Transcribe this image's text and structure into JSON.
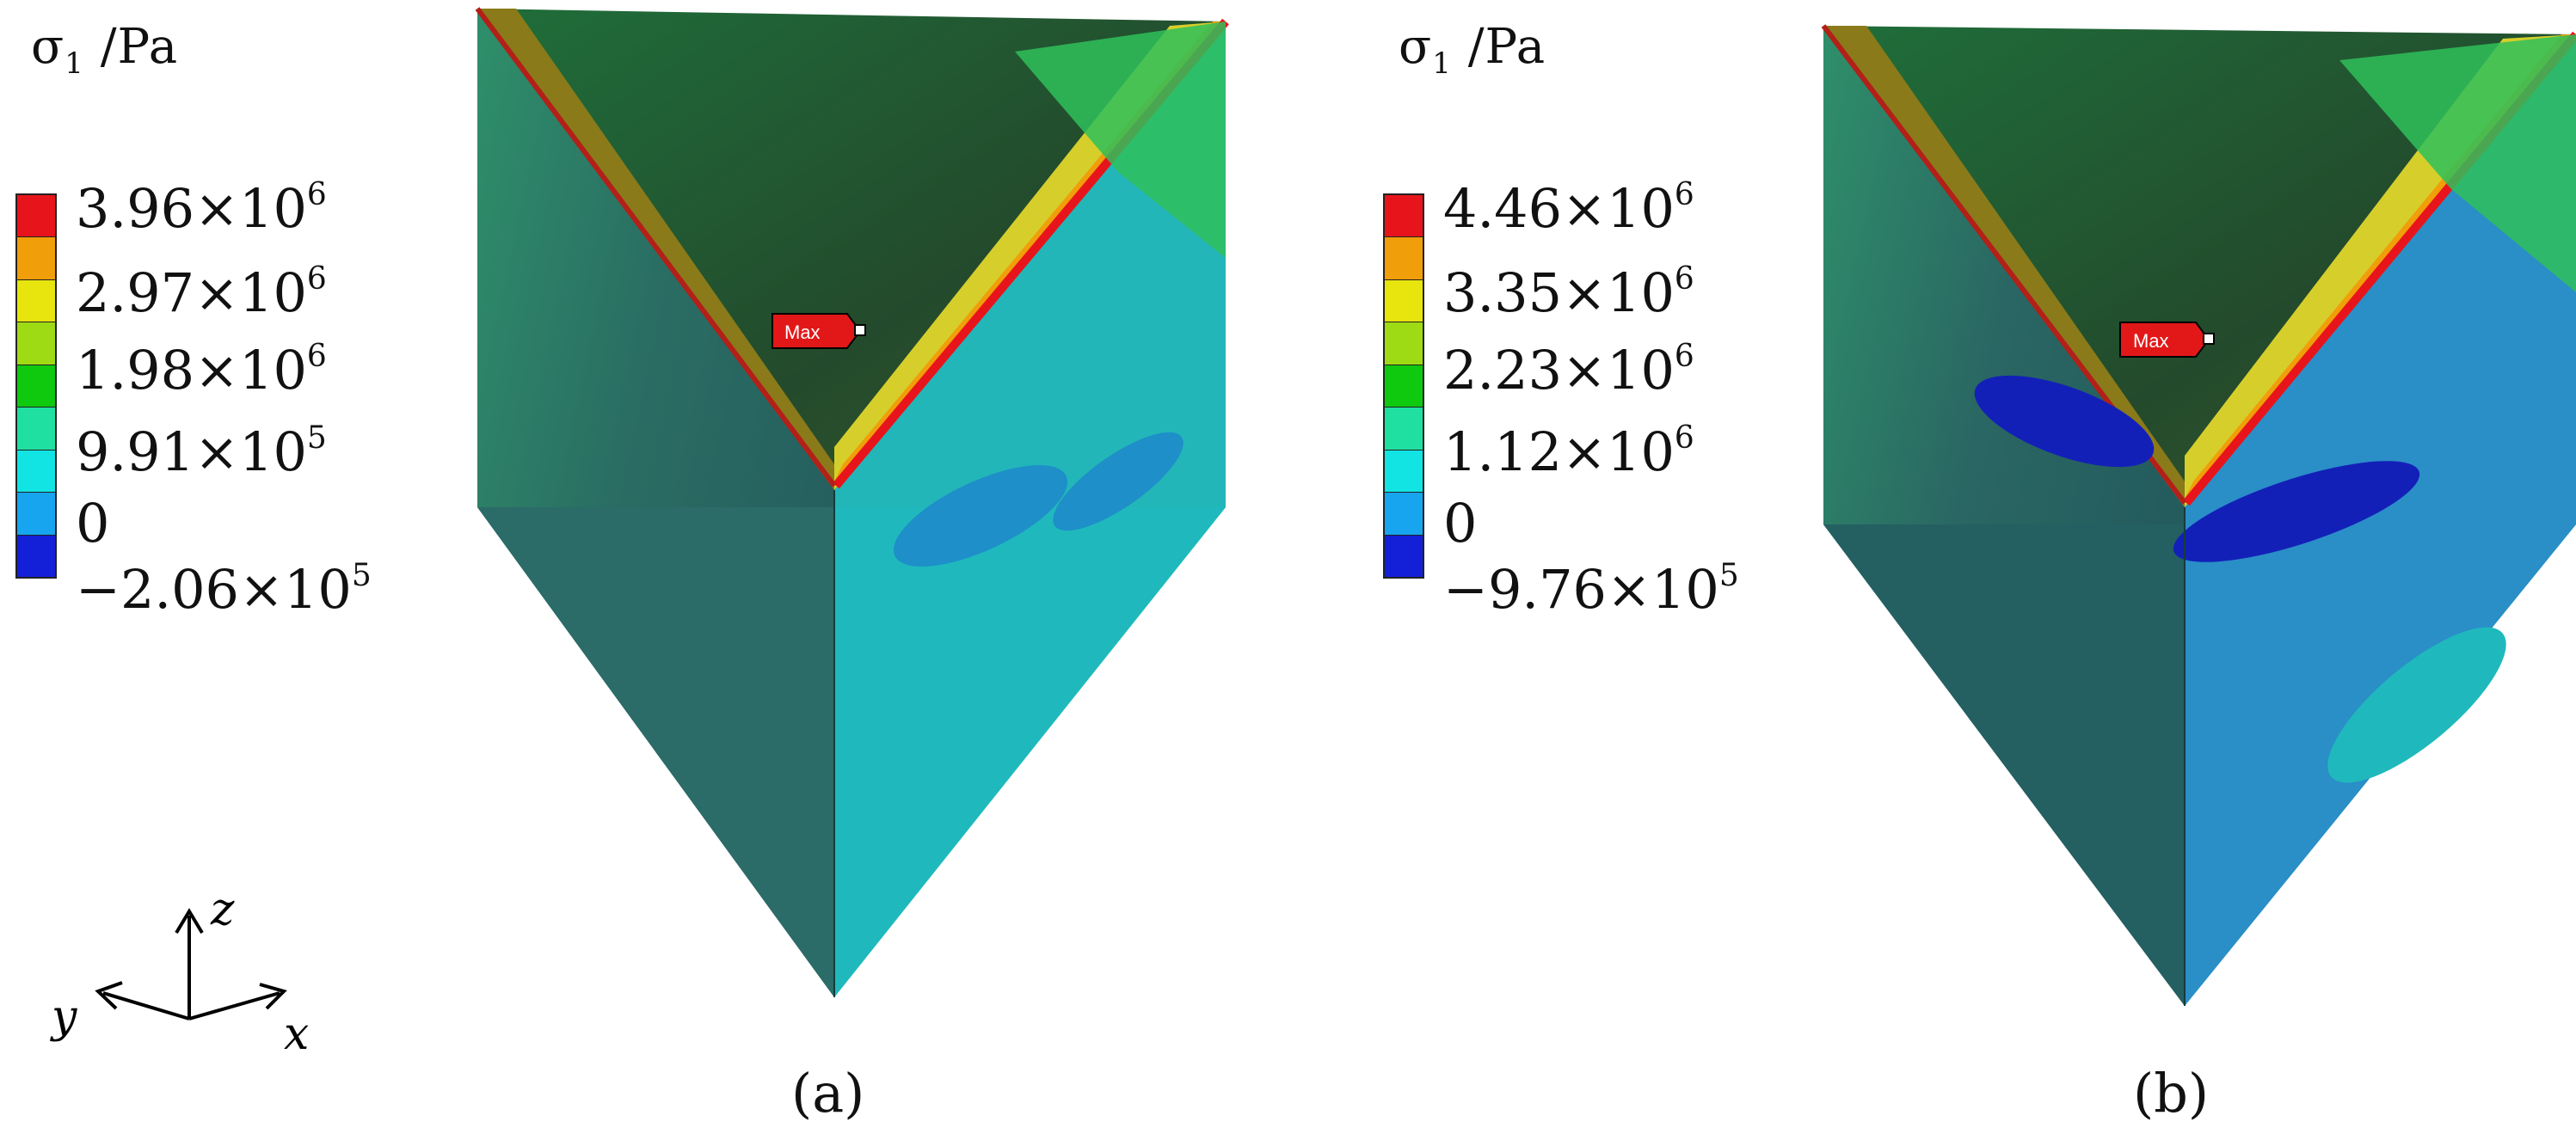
{
  "axes": {
    "z_label": "z",
    "y_label": "y",
    "x_label": "x"
  },
  "panels": [
    {
      "caption": "(a)",
      "legend": {
        "quantity": "σ",
        "quantity_sub": "1",
        "unit": "/Pa",
        "ticks": [
          {
            "mantissa": "3.96×10",
            "exp": "6"
          },
          {
            "mantissa": "2.97×10",
            "exp": "6"
          },
          {
            "mantissa": "1.98×10",
            "exp": "6"
          },
          {
            "mantissa": "9.91×10",
            "exp": "5"
          },
          {
            "mantissa": "0",
            "exp": ""
          },
          {
            "mantissa": "−2.06×10",
            "exp": "5"
          }
        ],
        "colors": [
          "#e8141b",
          "#f09e0a",
          "#e7e40e",
          "#9fdb14",
          "#0fc90f",
          "#1fe0a0",
          "#12e4e4",
          "#16a5ee",
          "#1320d8"
        ]
      },
      "max_label": "Max"
    },
    {
      "caption": "(b)",
      "legend": {
        "quantity": "σ",
        "quantity_sub": "1",
        "unit": "/Pa",
        "ticks": [
          {
            "mantissa": "4.46×10",
            "exp": "6"
          },
          {
            "mantissa": "3.35×10",
            "exp": "6"
          },
          {
            "mantissa": "2.23×10",
            "exp": "6"
          },
          {
            "mantissa": "1.12×10",
            "exp": "6"
          },
          {
            "mantissa": "0",
            "exp": ""
          },
          {
            "mantissa": "−9.76×10",
            "exp": "5"
          }
        ],
        "colors": [
          "#e8141b",
          "#f09e0a",
          "#e7e40e",
          "#9fdb14",
          "#0fc90f",
          "#1fe0a0",
          "#12e4e4",
          "#16a5ee",
          "#1320d8"
        ]
      },
      "max_label": "Max"
    }
  ]
}
